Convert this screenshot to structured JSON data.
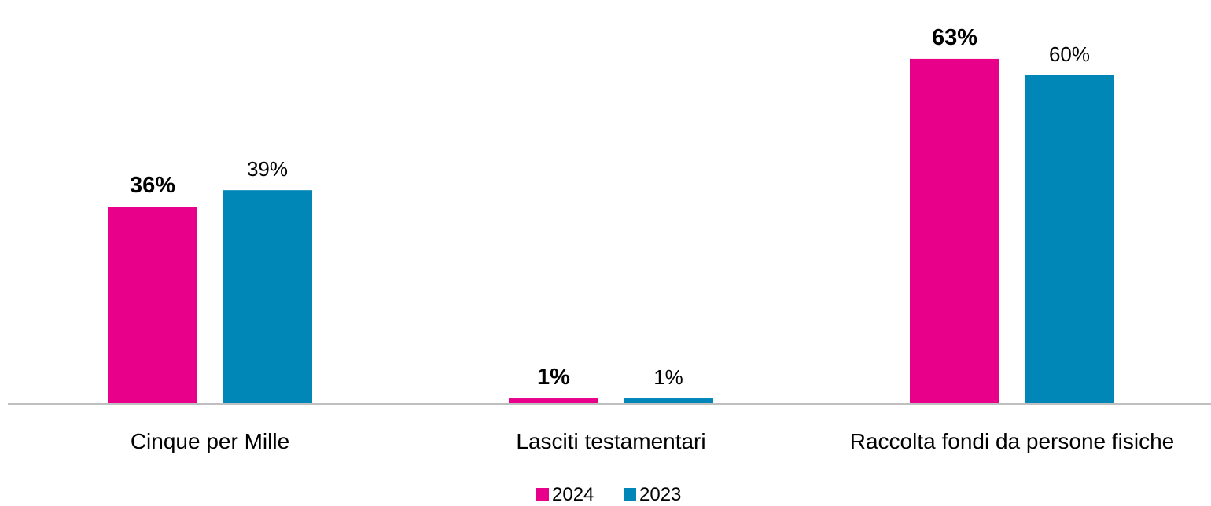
{
  "chart_data": {
    "type": "bar",
    "categories": [
      "Cinque per Mille",
      "Lasciti testamentari",
      "Raccolta fondi da persone fisiche"
    ],
    "series": [
      {
        "name": "2024",
        "color": "#E8008A",
        "values": [
          36,
          1,
          63
        ],
        "labels": [
          "36%",
          "1%",
          "63%"
        ],
        "label_weight": "bold"
      },
      {
        "name": "2023",
        "color": "#0087B8",
        "values": [
          39,
          1,
          60
        ],
        "labels": [
          "39%",
          "1%",
          "60%"
        ],
        "label_weight": "normal"
      }
    ],
    "ylim": [
      0,
      66
    ],
    "grid": false,
    "legend_position": "bottom-center",
    "axis_color": "#BFBFBF"
  }
}
